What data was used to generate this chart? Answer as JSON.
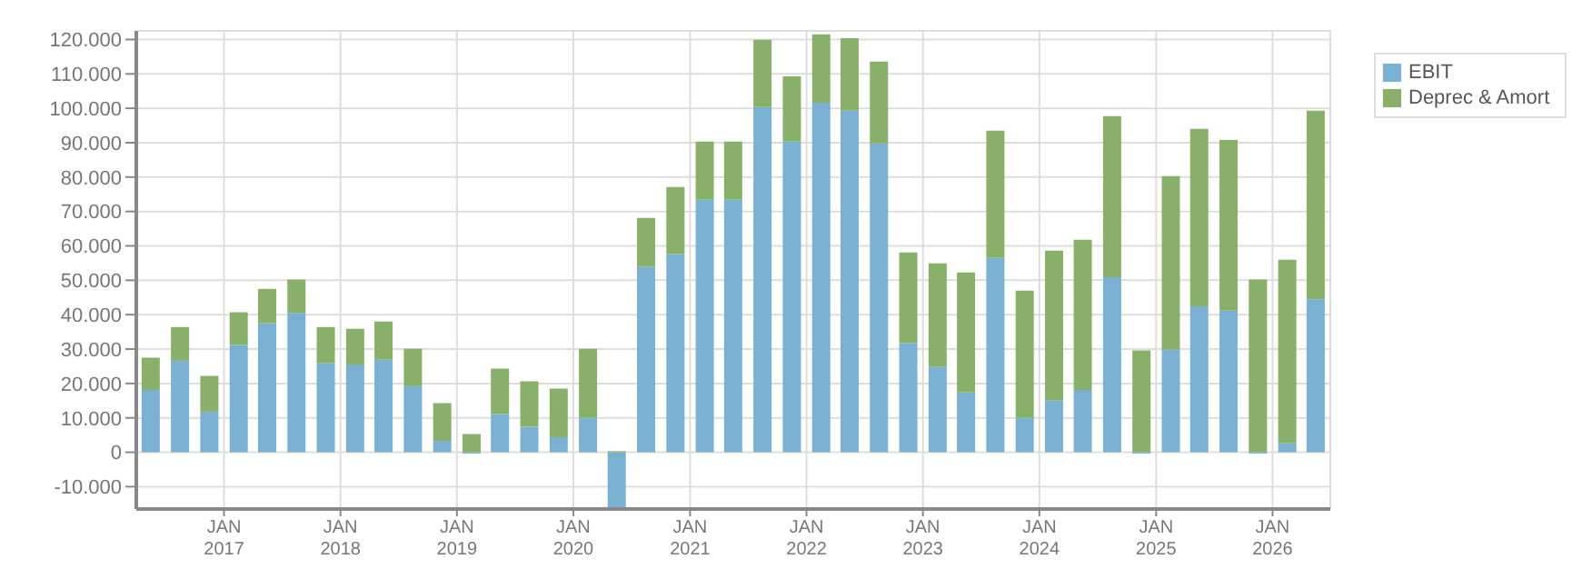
{
  "chart_data": {
    "type": "bar",
    "stacked": true,
    "x": [
      "2016-05-15",
      "2016-08-15",
      "2016-11-15",
      "2017-02-15",
      "2017-05-15",
      "2017-08-15",
      "2017-11-15",
      "2018-02-15",
      "2018-05-15",
      "2018-08-15",
      "2018-11-15",
      "2019-02-15",
      "2019-05-15",
      "2019-08-15",
      "2019-11-15",
      "2020-02-15",
      "2020-05-15",
      "2020-08-15",
      "2020-11-15",
      "2021-02-15",
      "2021-05-15",
      "2021-08-15",
      "2021-11-15",
      "2022-02-15",
      "2022-05-15",
      "2022-08-15",
      "2022-11-15",
      "2023-02-15",
      "2023-05-15",
      "2023-08-15",
      "2023-11-15",
      "2024-02-15",
      "2024-05-15",
      "2024-08-15",
      "2024-11-15",
      "2025-02-15",
      "2025-05-15",
      "2025-08-15",
      "2025-11-15",
      "2026-02-15",
      "2026-05-15"
    ],
    "series": [
      {
        "name": "EBIT",
        "color": "#7ab0d4",
        "values": [
          18100,
          26600,
          11800,
          31200,
          37500,
          40500,
          25900,
          25500,
          26900,
          19200,
          3300,
          -400,
          11100,
          7400,
          4400,
          10000,
          -16500,
          54000,
          57600,
          73400,
          73400,
          100400,
          90300,
          101600,
          99300,
          89800,
          31700,
          24800,
          17400,
          56500,
          10000,
          15000,
          18100,
          50900,
          -400,
          29800,
          42400,
          41200,
          -400,
          2600,
          44500
        ]
      },
      {
        "name": "Deprec & Amort",
        "color": "#88b068",
        "values": [
          9400,
          9800,
          10400,
          9500,
          10000,
          9700,
          10500,
          10400,
          11100,
          10900,
          11000,
          5300,
          13200,
          13200,
          14100,
          20100,
          300,
          14100,
          19500,
          16900,
          16900,
          19500,
          19000,
          19900,
          21100,
          23800,
          26400,
          30100,
          34900,
          37000,
          37000,
          43600,
          43700,
          46800,
          29600,
          50500,
          51600,
          49600,
          50200,
          53400,
          54800
        ]
      }
    ],
    "xlim": [
      "2016-04",
      "2026-07"
    ],
    "xticks": [
      {
        "value": "2017-01",
        "label": "JAN 2017"
      },
      {
        "value": "2018-01",
        "label": "JAN 2018"
      },
      {
        "value": "2019-01",
        "label": "JAN 2019"
      },
      {
        "value": "2020-01",
        "label": "JAN 2020"
      },
      {
        "value": "2021-01",
        "label": "JAN 2021"
      },
      {
        "value": "2022-01",
        "label": "JAN 2022"
      },
      {
        "value": "2023-01",
        "label": "JAN 2023"
      },
      {
        "value": "2024-01",
        "label": "JAN 2024"
      },
      {
        "value": "2025-01",
        "label": "JAN 2025"
      },
      {
        "value": "2026-01",
        "label": "JAN 2026"
      }
    ],
    "ylim": [
      -16500,
      122500
    ],
    "yticks": [
      {
        "value": -10000,
        "label": "-10.000"
      },
      {
        "value": 0,
        "label": "0"
      },
      {
        "value": 10000,
        "label": "10.000"
      },
      {
        "value": 20000,
        "label": "20.000"
      },
      {
        "value": 30000,
        "label": "30.000"
      },
      {
        "value": 40000,
        "label": "40.000"
      },
      {
        "value": 50000,
        "label": "50.000"
      },
      {
        "value": 60000,
        "label": "60.000"
      },
      {
        "value": 70000,
        "label": "70.000"
      },
      {
        "value": 80000,
        "label": "80.000"
      },
      {
        "value": 90000,
        "label": "90.000"
      },
      {
        "value": 100000,
        "label": "100.000"
      },
      {
        "value": 110000,
        "label": "110.000"
      },
      {
        "value": 120000,
        "label": "120.000"
      }
    ],
    "grid": true,
    "legend": "top right"
  }
}
